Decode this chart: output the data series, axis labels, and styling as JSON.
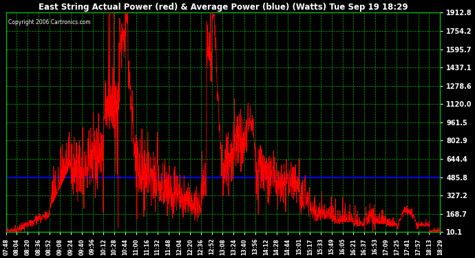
{
  "title": "East String Actual Power (red) & Average Power (blue) (Watts) Tue Sep 19 18:29",
  "copyright": "Copyright 2006 Cartronics.com",
  "ylabel_values": [
    1912.8,
    1754.2,
    1595.7,
    1437.1,
    1278.6,
    1120.0,
    961.5,
    802.9,
    644.4,
    485.8,
    327.2,
    168.7,
    10.1
  ],
  "ymin": 10.1,
  "ymax": 1912.8,
  "average_power": 485.8,
  "background_color": "#000000",
  "plot_bg_color": "#000000",
  "title_color": "#ffffff",
  "grid_color": "#00bb00",
  "red_color": "#ff0000",
  "blue_color": "#0000ff",
  "tick_label_color": "#ffffff",
  "x_tick_labels": [
    "07:48",
    "08:04",
    "08:20",
    "08:36",
    "08:52",
    "09:08",
    "09:24",
    "09:40",
    "09:56",
    "10:12",
    "10:28",
    "10:44",
    "11:00",
    "11:16",
    "11:32",
    "11:48",
    "12:04",
    "12:20",
    "12:36",
    "12:52",
    "13:08",
    "13:24",
    "13:40",
    "13:56",
    "14:12",
    "14:28",
    "14:44",
    "15:01",
    "15:17",
    "15:33",
    "15:49",
    "16:05",
    "16:21",
    "16:37",
    "16:53",
    "17:09",
    "17:25",
    "17:41",
    "17:57",
    "18:13",
    "18:29"
  ],
  "figwidth": 6.9,
  "figheight": 3.75,
  "dpi": 100
}
